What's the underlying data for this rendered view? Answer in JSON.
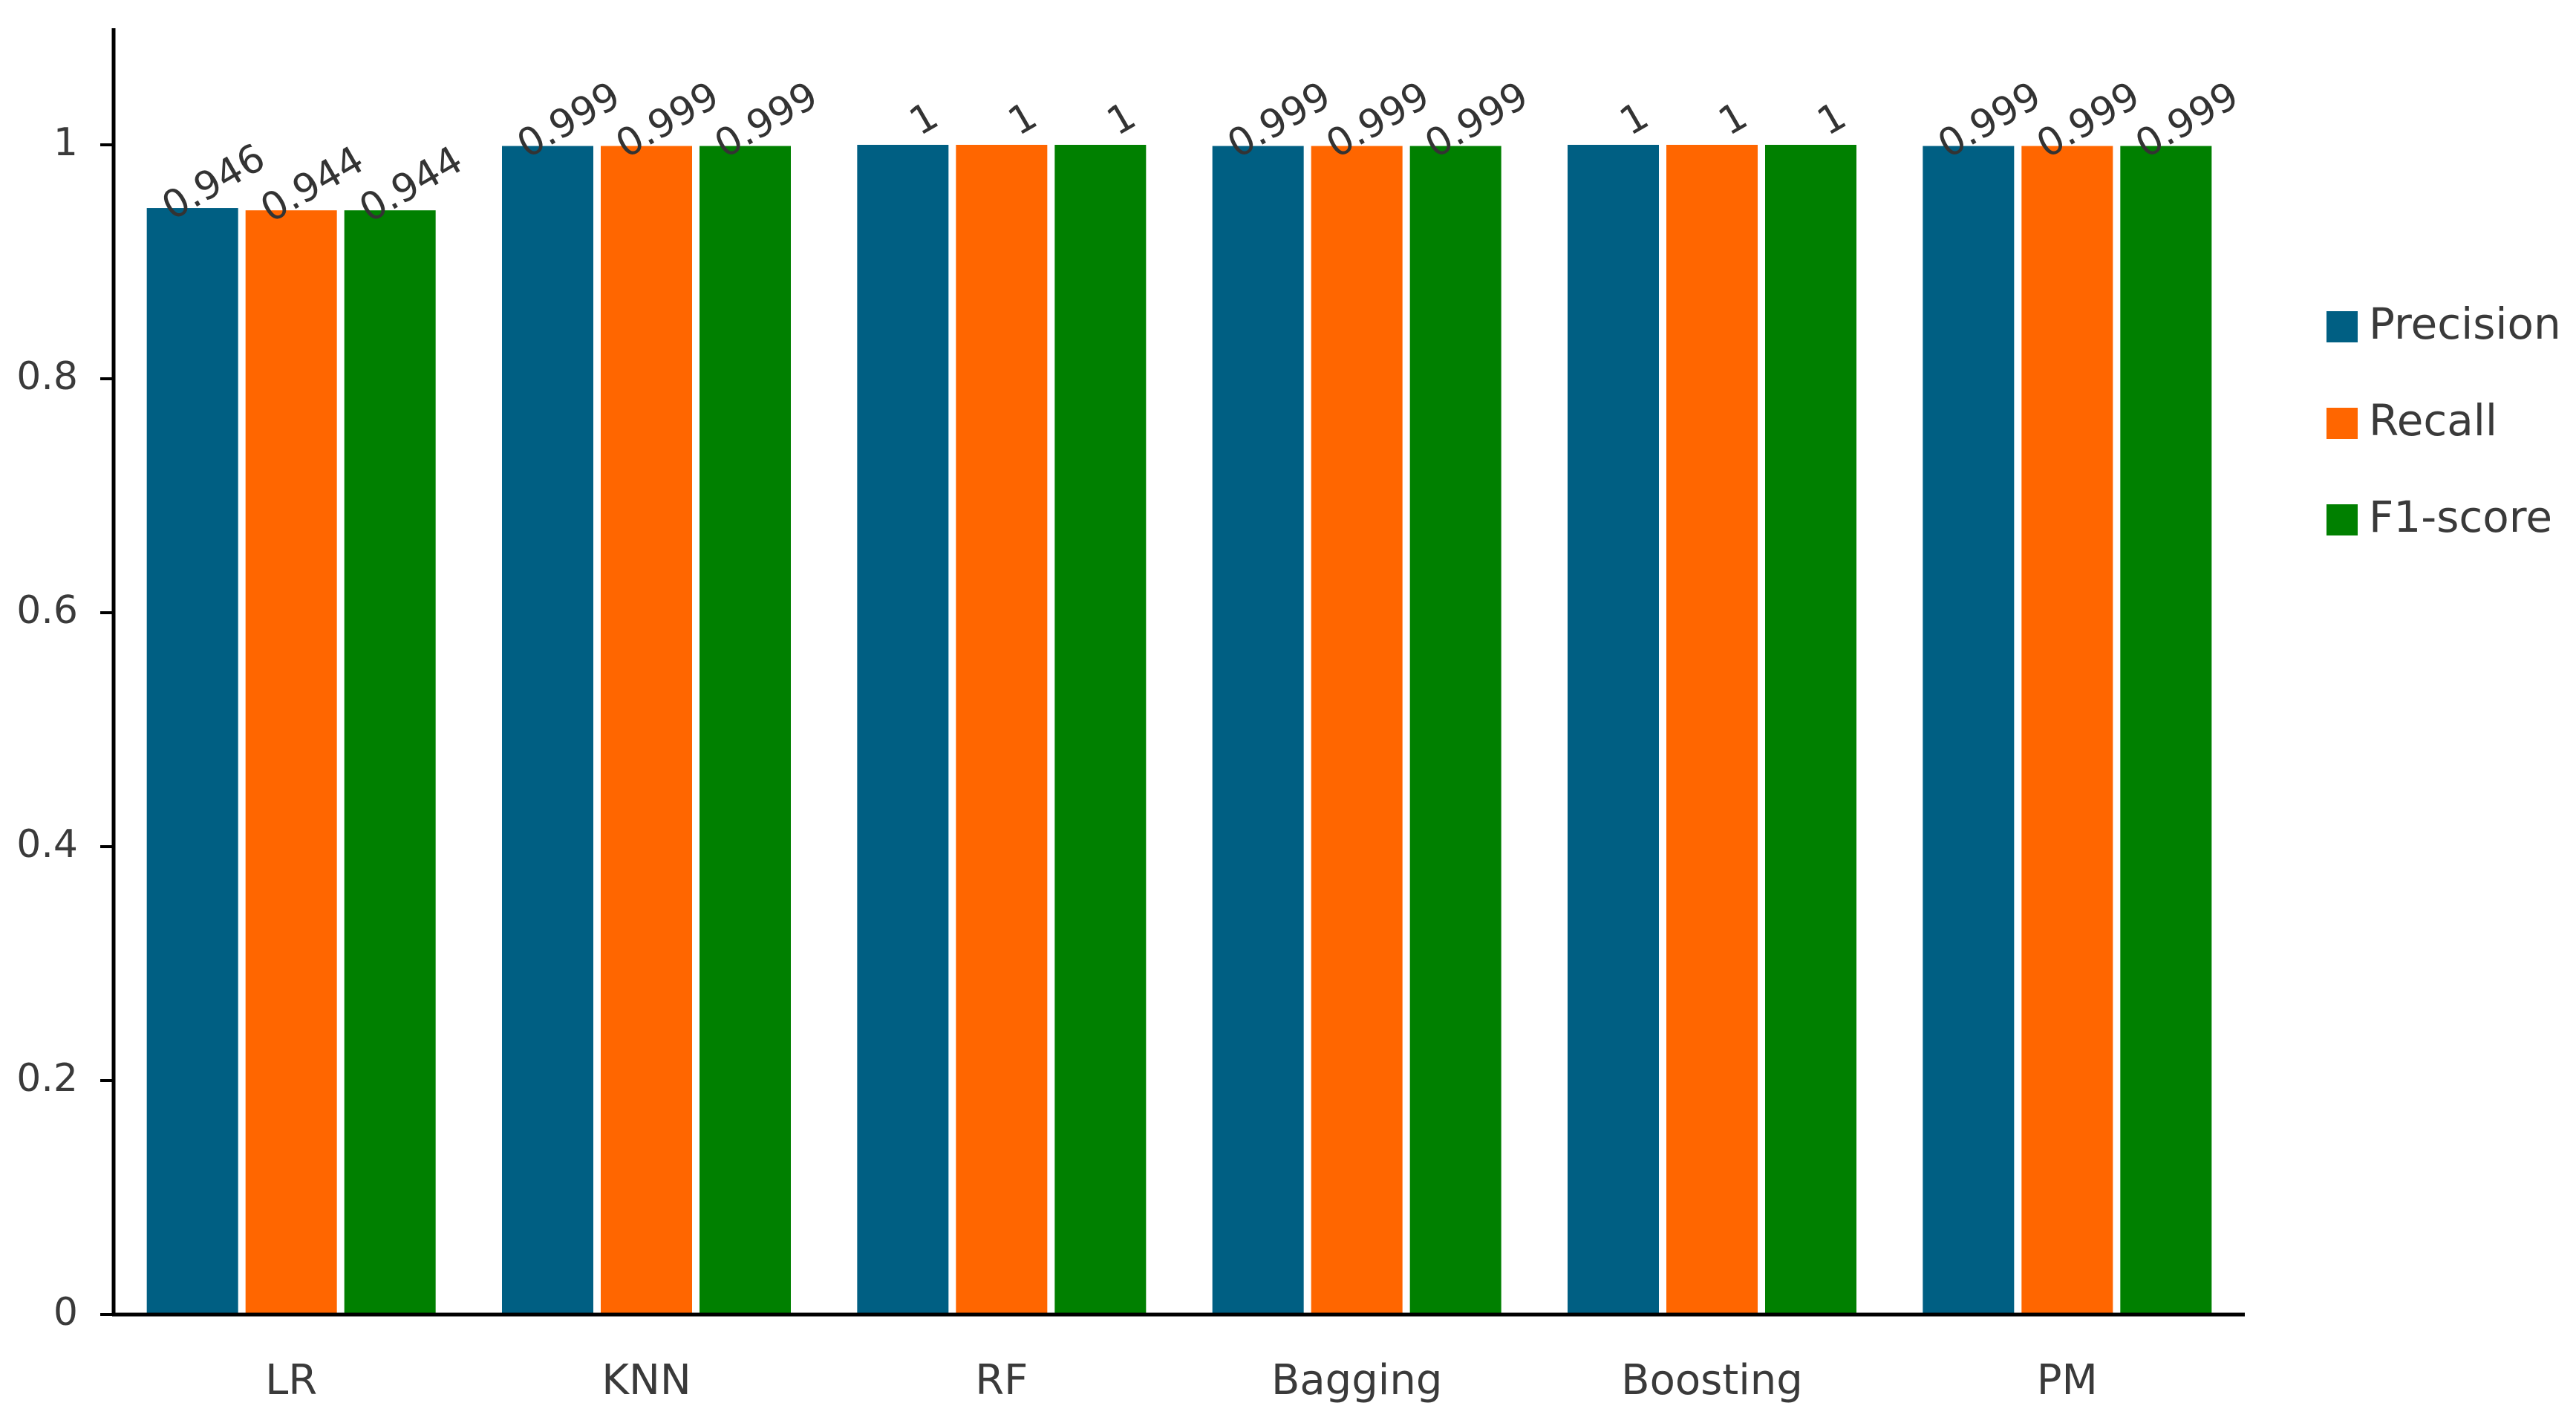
{
  "chart_data": {
    "type": "bar",
    "categories": [
      "LR",
      "KNN",
      "RF",
      "Bagging",
      "Boosting",
      "PM"
    ],
    "series": [
      {
        "name": "Precision",
        "color": "#005F83",
        "values": [
          0.946,
          0.999,
          1,
          0.999,
          1,
          0.999
        ],
        "labels": [
          "0.946",
          "0.999",
          "1",
          "0.999",
          "1",
          "0.999"
        ]
      },
      {
        "name": "Recall",
        "color": "#FF6600",
        "values": [
          0.944,
          0.999,
          1,
          0.999,
          1,
          0.999
        ],
        "labels": [
          "0.944",
          "0.999",
          "1",
          "0.999",
          "1",
          "0.999"
        ]
      },
      {
        "name": "F1-score",
        "color": "#008000",
        "values": [
          0.944,
          0.999,
          1,
          0.999,
          1,
          0.999
        ],
        "labels": [
          "0.944",
          "0.999",
          "1",
          "0.999",
          "1",
          "0.999"
        ]
      }
    ],
    "ylim": [
      0,
      1.1
    ],
    "yticks": [
      0,
      0.2,
      0.4,
      0.6,
      0.8,
      1
    ],
    "ytick_labels": [
      "0",
      "0.2",
      "0.4",
      "0.6",
      "0.8",
      "1"
    ],
    "title": "",
    "xlabel": "",
    "ylabel": "",
    "grid": false,
    "legend_position": "right"
  }
}
